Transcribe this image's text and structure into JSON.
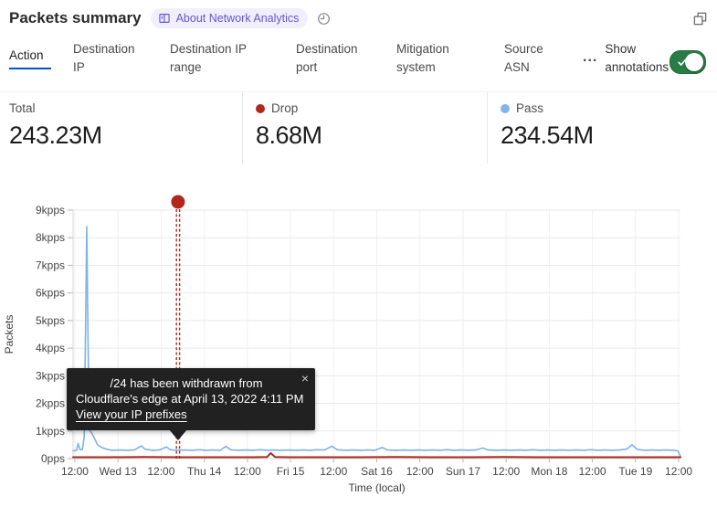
{
  "header": {
    "title": "Packets summary",
    "badge_label": "About Network Analytics"
  },
  "window_icons": {
    "expand": "expand-icon",
    "history": "time-history-icon"
  },
  "tabs": [
    {
      "label": "Action",
      "active": true
    },
    {
      "label": "Destination IP",
      "active": false
    },
    {
      "label": "Destination IP range",
      "active": false
    },
    {
      "label": "Destination port",
      "active": false
    },
    {
      "label": "Mitigation system",
      "active": false
    },
    {
      "label": "Source ASN",
      "active": false
    }
  ],
  "tabs_more_label": "...",
  "annotations_toggle": {
    "label": "Show annotations",
    "on": true
  },
  "stats": [
    {
      "label": "Total",
      "value": "243.23M",
      "dot": null
    },
    {
      "label": "Drop",
      "value": "8.68M",
      "dot": "#B1271B"
    },
    {
      "label": "Pass",
      "value": "234.54M",
      "dot": "#83B5EA"
    }
  ],
  "tooltip": {
    "line1": "/24 has been withdrawn from",
    "line2": "Cloudflare's edge at April 13, 2022 4:11 PM",
    "link": "View your IP prefixes",
    "close": "×"
  },
  "chart_data": {
    "type": "line",
    "title": "Packets summary",
    "xlabel": "Time (local)",
    "ylabel": "Packets",
    "grid": true,
    "legend_position": "none",
    "ylim": [
      0,
      9
    ],
    "xlim": [
      0,
      169
    ],
    "y_unit": "kpps",
    "y_ticks": [
      "0pps",
      "1kpps",
      "2kpps",
      "3kpps",
      "4kpps",
      "5kpps",
      "6kpps",
      "7kpps",
      "8kpps",
      "9kpps"
    ],
    "x_ticks": [
      "12:00",
      "Wed 13",
      "12:00",
      "Thu 14",
      "12:00",
      "Fri 15",
      "12:00",
      "Sat 16",
      "12:00",
      "Sun 17",
      "12:00",
      "Mon 18",
      "12:00",
      "Tue 19",
      "12:00"
    ],
    "x_tick_hours": [
      0.5,
      12.5,
      24.5,
      36.5,
      48.5,
      60.5,
      72.5,
      84.5,
      96.5,
      108.5,
      120.5,
      132.5,
      144.5,
      156.5,
      168.5
    ],
    "annotation": {
      "t": 29.2,
      "color": "#B1271B",
      "style": "dashed-double",
      "dot_value_kpps": 9.3
    },
    "series": [
      {
        "name": "Pass",
        "color": "#7EB2E8",
        "width": 1.6,
        "points": [
          [
            0,
            0.28
          ],
          [
            1,
            0.3
          ],
          [
            1.4,
            0.55
          ],
          [
            1.9,
            0.33
          ],
          [
            2.6,
            0.32
          ],
          [
            3.1,
            0.8
          ],
          [
            3.45,
            4.5
          ],
          [
            3.8,
            8.4
          ],
          [
            4.15,
            4.5
          ],
          [
            4.5,
            1.05
          ],
          [
            5.2,
            0.92
          ],
          [
            6,
            0.72
          ],
          [
            6.8,
            0.5
          ],
          [
            8,
            0.4
          ],
          [
            9.5,
            0.33
          ],
          [
            11,
            0.3
          ],
          [
            13,
            0.31
          ],
          [
            15,
            0.3
          ],
          [
            17,
            0.31
          ],
          [
            19,
            0.46
          ],
          [
            20,
            0.34
          ],
          [
            22,
            0.3
          ],
          [
            24,
            0.31
          ],
          [
            26,
            0.42
          ],
          [
            27,
            0.32
          ],
          [
            29,
            0.3
          ],
          [
            31,
            0.31
          ],
          [
            33,
            0.3
          ],
          [
            35,
            0.32
          ],
          [
            37,
            0.3
          ],
          [
            39,
            0.31
          ],
          [
            41,
            0.3
          ],
          [
            42.5,
            0.44
          ],
          [
            44,
            0.31
          ],
          [
            46,
            0.3
          ],
          [
            48,
            0.31
          ],
          [
            50,
            0.3
          ],
          [
            52,
            0.32
          ],
          [
            54,
            0.3
          ],
          [
            56,
            0.31
          ],
          [
            58,
            0.3
          ],
          [
            60,
            0.31
          ],
          [
            62,
            0.3
          ],
          [
            64,
            0.31
          ],
          [
            66,
            0.3
          ],
          [
            68,
            0.32
          ],
          [
            70,
            0.31
          ],
          [
            72,
            0.45
          ],
          [
            73.5,
            0.32
          ],
          [
            76,
            0.3
          ],
          [
            78,
            0.31
          ],
          [
            80,
            0.3
          ],
          [
            82,
            0.31
          ],
          [
            84,
            0.3
          ],
          [
            86,
            0.4
          ],
          [
            87.5,
            0.31
          ],
          [
            90,
            0.3
          ],
          [
            92,
            0.31
          ],
          [
            94,
            0.3
          ],
          [
            96,
            0.31
          ],
          [
            98,
            0.3
          ],
          [
            100,
            0.31
          ],
          [
            102,
            0.3
          ],
          [
            104,
            0.32
          ],
          [
            106,
            0.3
          ],
          [
            108,
            0.31
          ],
          [
            110,
            0.3
          ],
          [
            112,
            0.31
          ],
          [
            114,
            0.38
          ],
          [
            115.5,
            0.31
          ],
          [
            118,
            0.3
          ],
          [
            120,
            0.31
          ],
          [
            122,
            0.3
          ],
          [
            124,
            0.31
          ],
          [
            126,
            0.3
          ],
          [
            128,
            0.32
          ],
          [
            130,
            0.3
          ],
          [
            132,
            0.31
          ],
          [
            134,
            0.3
          ],
          [
            136,
            0.31
          ],
          [
            138,
            0.3
          ],
          [
            140,
            0.31
          ],
          [
            142,
            0.3
          ],
          [
            144,
            0.32
          ],
          [
            146,
            0.3
          ],
          [
            148,
            0.31
          ],
          [
            150,
            0.3
          ],
          [
            152,
            0.31
          ],
          [
            154,
            0.34
          ],
          [
            155.5,
            0.5
          ],
          [
            157,
            0.33
          ],
          [
            159,
            0.3
          ],
          [
            161,
            0.31
          ],
          [
            163,
            0.3
          ],
          [
            165,
            0.31
          ],
          [
            167,
            0.3
          ],
          [
            168.3,
            0.28
          ],
          [
            169,
            0.08
          ]
        ]
      },
      {
        "name": "Drop",
        "color": "#A8291E",
        "width": 2,
        "points": [
          [
            0,
            0.05
          ],
          [
            10,
            0.05
          ],
          [
            20,
            0.06
          ],
          [
            30,
            0.05
          ],
          [
            40,
            0.05
          ],
          [
            50,
            0.05
          ],
          [
            54,
            0.06
          ],
          [
            55,
            0.2
          ],
          [
            56.2,
            0.06
          ],
          [
            60,
            0.05
          ],
          [
            70,
            0.05
          ],
          [
            80,
            0.05
          ],
          [
            90,
            0.06
          ],
          [
            100,
            0.05
          ],
          [
            110,
            0.05
          ],
          [
            120,
            0.06
          ],
          [
            130,
            0.05
          ],
          [
            140,
            0.05
          ],
          [
            150,
            0.05
          ],
          [
            160,
            0.05
          ],
          [
            169,
            0.05
          ]
        ]
      }
    ]
  }
}
